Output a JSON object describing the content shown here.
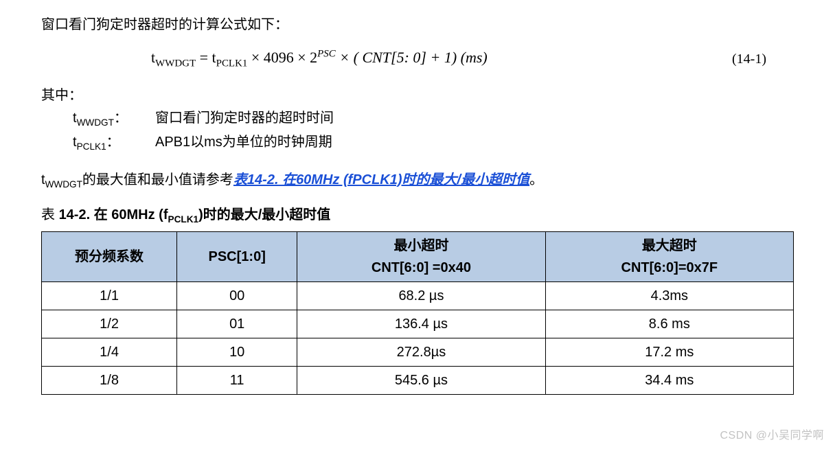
{
  "text": {
    "intro": "窗口看门狗定时器超时的计算公式如下：",
    "where_label": "其中：",
    "def1_term_prefix": "t",
    "def1_term_sub": "WWDGT",
    "def1_colon": "：",
    "def1_desc": "窗口看门狗定时器的超时时间",
    "def2_term_prefix": "t",
    "def2_term_sub": "PCLK1",
    "def2_colon": "：",
    "def2_desc": "APB1以ms为单位的时钟周期",
    "ref_prefix_t": "t",
    "ref_prefix_sub": "WWDGT",
    "ref_mid": "的最大值和最小值请参考",
    "ref_link": "表14-2.  在60MHz (fPCLK1)时的最大/最小超时值",
    "ref_suffix": "。"
  },
  "formula": {
    "lhs_t": "t",
    "lhs_sub": "WWDGT",
    "eq": " = ",
    "rhs1_t": "t",
    "rhs1_sub": "PCLK1",
    "mul1": "   × 4096   × 2",
    "exp": "PSC",
    "mul2": "   × (  CNT[5: 0] + 1)     (ms)",
    "number": "(14-1)"
  },
  "table": {
    "title_pre": "表 ",
    "title_num": "14-2. ",
    "title_rest_1": "在 60MHz (f",
    "title_rest_sub": "PCLK1",
    "title_rest_2": ")时的最大/最小超时值",
    "header_bg": "#b8cce4",
    "border_color": "#000000",
    "columns": [
      {
        "line1": "预分频系数",
        "line2": ""
      },
      {
        "line1": "PSC[1:0]",
        "line2": ""
      },
      {
        "line1": "最小超时",
        "line2": "CNT[6:0] =0x40"
      },
      {
        "line1": "最大超时",
        "line2": "CNT[6:0]=0x7F"
      }
    ],
    "rows": [
      [
        "1/1",
        "00",
        "68.2 µs",
        "4.3ms"
      ],
      [
        "1/2",
        "01",
        "136.4 µs",
        "8.6 ms"
      ],
      [
        "1/4",
        "10",
        "272.8µs",
        "17.2 ms"
      ],
      [
        "1/8",
        "11",
        "545.6 µs",
        "34.4 ms"
      ]
    ]
  },
  "watermark": "CSDN @小吴同学啊"
}
